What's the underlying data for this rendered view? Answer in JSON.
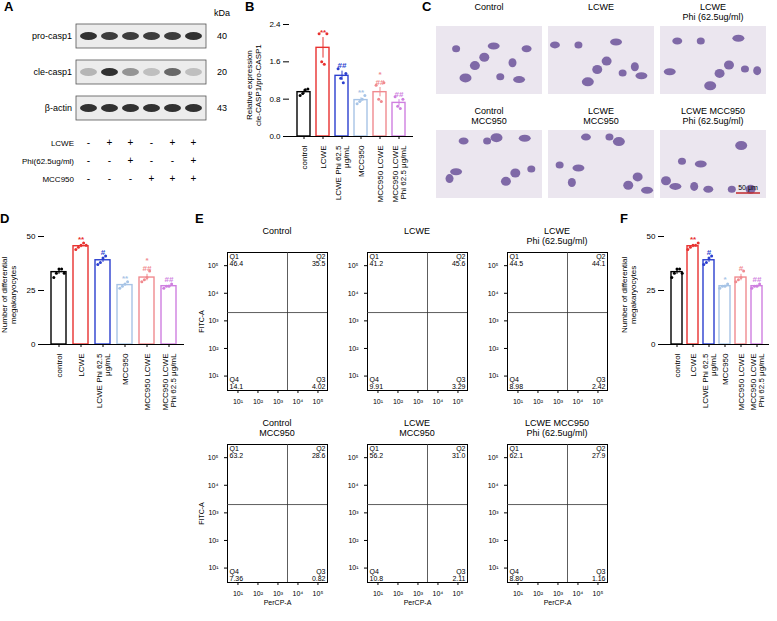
{
  "chart_data": [
    {
      "panel_label": "B",
      "type": "bar",
      "y_label": [
        "Relative expression",
        "cle-CASP1/pro-CASP1"
      ],
      "categories": [
        "control",
        "LCWE",
        "LCWE Phi 62.5 μg/mL",
        "MCC950",
        "MCC950 LCWE",
        "MCC950 LCWE Phi 62.5 μg/mL"
      ],
      "values": [
        0.95,
        1.9,
        1.3,
        0.78,
        0.95,
        0.72
      ],
      "errors": [
        0.05,
        0.22,
        0.1,
        0.05,
        0.1,
        0.07
      ],
      "points": [
        [
          0.88,
          0.92,
          1.0,
          1.02
        ],
        [
          2.2,
          1.6,
          1.55,
          2.2
        ],
        [
          1.45,
          1.25,
          1.15,
          1.35
        ],
        [
          0.7,
          0.75,
          0.8,
          0.88
        ],
        [
          1.1,
          0.8,
          0.75,
          1.15
        ],
        [
          0.85,
          0.65,
          0.6,
          0.8
        ]
      ],
      "colors": [
        "#000000",
        "#e8312f",
        "#2b3fcf",
        "#a7c4e6",
        "#f08a8f",
        "#cf7fe0"
      ],
      "annotations": [
        null,
        [
          "**"
        ],
        [
          "##"
        ],
        [
          "**"
        ],
        [
          "*",
          "##"
        ],
        [
          "##"
        ]
      ],
      "ylim": [
        0,
        2.4
      ],
      "yticks": [
        {
          "value": 0,
          "label": "0.0"
        },
        0.8,
        1.6,
        2.4
      ]
    },
    {
      "panel_label": "D",
      "type": "bar",
      "y_label": [
        "Number of differential",
        "megakaryocytes"
      ],
      "categories": [
        "control",
        "LCWE",
        "LCWE Phi 62.5 μg/mL",
        "MCC950",
        "MCC950 LCWE",
        "MCC950 LCWE Phi 62.5 μg/mL"
      ],
      "values": [
        33.5,
        45.5,
        39,
        27.5,
        31,
        27
      ],
      "errors": [
        1,
        0.7,
        1,
        0.5,
        1.5,
        0.5
      ],
      "points": [
        [
          31,
          33,
          35,
          35,
          33
        ],
        [
          44,
          45,
          46,
          47,
          46
        ],
        [
          37,
          38,
          40,
          41
        ],
        [
          26,
          27,
          28,
          29
        ],
        [
          29,
          30,
          31,
          34
        ],
        [
          26,
          27,
          27,
          28
        ]
      ],
      "colors": [
        "#000000",
        "#e8312f",
        "#2b3fcf",
        "#a7c4e6",
        "#f08a8f",
        "#cf7fe0"
      ],
      "annotations": [
        null,
        [
          "**"
        ],
        [
          "#"
        ],
        [
          "**"
        ],
        [
          "*",
          "##"
        ],
        [
          "##"
        ]
      ],
      "ylim": [
        0,
        50
      ],
      "yticks": [
        0,
        25,
        50
      ]
    },
    {
      "panel_label": "F",
      "type": "bar",
      "y_label": [
        "Number of differential",
        "megakaryocytes"
      ],
      "categories": [
        "control",
        "LCWE",
        "LCWE Phi 62.5 μg/mL",
        "MCC950",
        "MCC950 LCWE",
        "MCC950 LCWE Phi 62.5 μg/mL"
      ],
      "values": [
        33.5,
        45.5,
        39,
        27,
        31,
        27
      ],
      "errors": [
        1,
        0.7,
        1,
        0.5,
        1.5,
        0.5
      ],
      "points": [
        [
          31,
          33,
          35,
          35,
          33
        ],
        [
          44,
          45,
          46,
          46,
          47
        ],
        [
          37,
          38,
          40,
          41
        ],
        [
          26,
          27,
          27,
          28
        ],
        [
          29,
          30,
          31,
          34
        ],
        [
          26,
          27,
          27,
          28
        ]
      ],
      "colors": [
        "#000000",
        "#e8312f",
        "#2b3fcf",
        "#a7c4e6",
        "#f08a8f",
        "#cf7fe0"
      ],
      "annotations": [
        null,
        [
          "**"
        ],
        [
          "#"
        ],
        [
          "*"
        ],
        [
          "#"
        ],
        [
          "##"
        ]
      ],
      "ylim": [
        0,
        50
      ],
      "yticks": [
        0,
        25,
        50
      ]
    }
  ],
  "western_blot": {
    "panel_label": "A",
    "unit_header": "kDa",
    "rows": [
      {
        "name": "pro-casp1",
        "kDa": 40,
        "intensity": [
          0.85,
          0.8,
          0.8,
          0.8,
          0.8,
          0.85
        ]
      },
      {
        "name": "cle-casp1",
        "kDa": 20,
        "intensity": [
          0.25,
          0.85,
          0.4,
          0.2,
          0.6,
          0.2
        ]
      },
      {
        "name": "β-actin",
        "kDa": 43,
        "intensity": [
          0.85,
          0.85,
          0.85,
          0.85,
          0.85,
          0.85
        ]
      }
    ],
    "treatments": [
      {
        "name": "LCWE",
        "signs": [
          "-",
          "+",
          "+",
          "-",
          "+",
          "+"
        ]
      },
      {
        "name": "Phi(62.5ug/ml)",
        "signs": [
          "-",
          "-",
          "+",
          "-",
          "-",
          "+"
        ]
      },
      {
        "name": "MCC950",
        "signs": [
          "-",
          "-",
          "-",
          "+",
          "+",
          "+"
        ]
      }
    ]
  },
  "micrographs": {
    "panel_label": "C",
    "titles": [
      [
        "Control"
      ],
      [
        "LCWE"
      ],
      [
        "LCWE",
        "Phi (62.5ug/ml)"
      ],
      [
        "Control",
        "MCC950"
      ],
      [
        "LCWE",
        "MCC950"
      ],
      [
        "LCWE MCC950",
        "Phi (62.5ug/ml)"
      ]
    ],
    "scale_bar": "50 μm"
  },
  "flow_cytometry": {
    "panel_label": "E",
    "type": "scatter",
    "log": true,
    "x_label": "PerCP-A",
    "y_label": "FITC-A",
    "xlim": [
      3,
      300000
    ],
    "ylim": [
      3,
      300000
    ],
    "xticks": [
      {
        "value": 10,
        "label": "10¹"
      },
      {
        "value": 100,
        "label": "10²"
      },
      {
        "value": 1000,
        "label": "10³"
      },
      {
        "value": 10000,
        "label": "10⁴"
      },
      {
        "value": 100000,
        "label": "10⁵"
      }
    ],
    "yticks": [
      {
        "value": 10,
        "label": "10¹"
      },
      {
        "value": 100,
        "label": "10²"
      },
      {
        "value": 1000,
        "label": "10³"
      },
      {
        "value": 10000,
        "label": "10⁴"
      },
      {
        "value": 100000,
        "label": "10⁵"
      }
    ],
    "gate": {
      "x": 3000,
      "y": 2000
    },
    "plots": [
      {
        "title": [
          "Control"
        ],
        "quadrants": [
          {
            "name": "Q1",
            "value": 46.4
          },
          {
            "name": "Q2",
            "value": 35.5
          },
          {
            "name": "Q3",
            "value": 4.02
          },
          {
            "name": "Q4",
            "value": 14.1
          }
        ]
      },
      {
        "title": [
          "LCWE"
        ],
        "quadrants": [
          {
            "name": "Q1",
            "value": 41.2
          },
          {
            "name": "Q2",
            "value": 45.6
          },
          {
            "name": "Q3",
            "value": 3.29
          },
          {
            "name": "Q4",
            "value": 9.91
          }
        ]
      },
      {
        "title": [
          "LCWE",
          "Phi (62.5ug/ml)"
        ],
        "quadrants": [
          {
            "name": "Q1",
            "value": 44.5
          },
          {
            "name": "Q2",
            "value": 44.1
          },
          {
            "name": "Q3",
            "value": 2.42
          },
          {
            "name": "Q4",
            "value": 8.98
          }
        ]
      },
      {
        "title": [
          "Control",
          "MCC950"
        ],
        "quadrants": [
          {
            "name": "Q1",
            "value": 63.2
          },
          {
            "name": "Q2",
            "value": 28.6
          },
          {
            "name": "Q3",
            "value": 0.82
          },
          {
            "name": "Q4",
            "value": 7.36
          }
        ]
      },
      {
        "title": [
          "LCWE",
          "MCC950"
        ],
        "quadrants": [
          {
            "name": "Q1",
            "value": 56.2
          },
          {
            "name": "Q2",
            "value": {
              "value": 31,
              "label": "31.0"
            }
          },
          {
            "name": "Q3",
            "value": 2.11
          },
          {
            "name": "Q4",
            "value": 10.8
          }
        ]
      },
      {
        "title": [
          "LCWE MCC950",
          "Phi (62.5ug/ml)"
        ],
        "quadrants": [
          {
            "name": "Q1",
            "value": 62.1
          },
          {
            "name": "Q2",
            "value": 27.9
          },
          {
            "name": "Q3",
            "value": 1.16
          },
          {
            "name": "Q4",
            "value": {
              "value": 8.8,
              "label": "8.80"
            }
          }
        ]
      }
    ]
  }
}
